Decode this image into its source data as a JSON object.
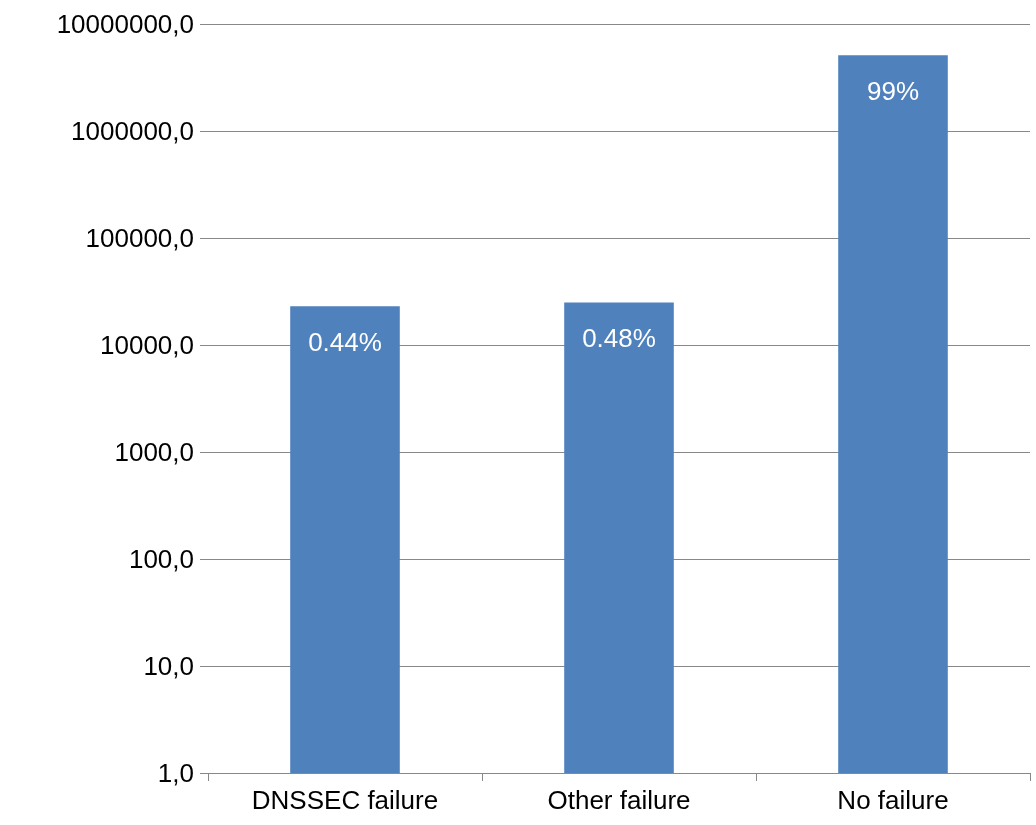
{
  "chart_data": {
    "type": "bar",
    "categories": [
      "DNSSEC failure",
      "Other failure",
      "No failure"
    ],
    "values": [
      23000,
      25000,
      5100000
    ],
    "color": "#4f81bd",
    "annotations": [
      {
        "text": "0.44%",
        "x": "DNSSEC failure",
        "y": 23000
      },
      {
        "text": "0.48%",
        "x": "Other failure",
        "y": 25000
      },
      {
        "text": "99%",
        "x": "No failure",
        "y": 5100000
      }
    ],
    "log": true,
    "ylim": [
      1,
      10000000
    ],
    "yticks": [
      {
        "value": 1,
        "label": "1,0"
      },
      {
        "value": 10,
        "label": "10,0"
      },
      {
        "value": 100,
        "label": "100,0"
      },
      {
        "value": 1000,
        "label": "1000,0"
      },
      {
        "value": 10000,
        "label": "10000,0"
      },
      {
        "value": 100000,
        "label": "100000,0"
      },
      {
        "value": 1000000,
        "label": "1000000,0"
      },
      {
        "value": 10000000,
        "label": "10000000,0"
      }
    ],
    "grid": "y"
  }
}
